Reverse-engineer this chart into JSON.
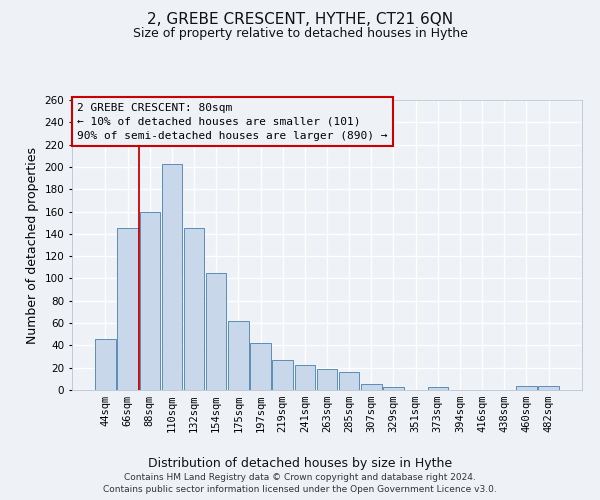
{
  "title": "2, GREBE CRESCENT, HYTHE, CT21 6QN",
  "subtitle": "Size of property relative to detached houses in Hythe",
  "xlabel": "Distribution of detached houses by size in Hythe",
  "ylabel": "Number of detached properties",
  "bar_labels": [
    "44sqm",
    "66sqm",
    "88sqm",
    "110sqm",
    "132sqm",
    "154sqm",
    "175sqm",
    "197sqm",
    "219sqm",
    "241sqm",
    "263sqm",
    "285sqm",
    "307sqm",
    "329sqm",
    "351sqm",
    "373sqm",
    "394sqm",
    "416sqm",
    "438sqm",
    "460sqm",
    "482sqm"
  ],
  "bar_heights": [
    46,
    145,
    160,
    203,
    145,
    105,
    62,
    42,
    27,
    22,
    19,
    16,
    5,
    3,
    0,
    3,
    0,
    0,
    0,
    4,
    4
  ],
  "bar_color": "#c8d8ea",
  "bar_edge_color": "#5b8db8",
  "ylim": [
    0,
    260
  ],
  "yticks": [
    0,
    20,
    40,
    60,
    80,
    100,
    120,
    140,
    160,
    180,
    200,
    220,
    240,
    260
  ],
  "vline_color": "#cc0000",
  "vline_pos": 1.5,
  "annotation_title": "2 GREBE CRESCENT: 80sqm",
  "annotation_line1": "← 10% of detached houses are smaller (101)",
  "annotation_line2": "90% of semi-detached houses are larger (890) →",
  "annotation_box_color": "#cc0000",
  "footer_line1": "Contains HM Land Registry data © Crown copyright and database right 2024.",
  "footer_line2": "Contains public sector information licensed under the Open Government Licence v3.0.",
  "bg_color": "#eef2f7",
  "grid_color": "#ffffff",
  "title_fontsize": 11,
  "subtitle_fontsize": 9,
  "axis_label_fontsize": 9,
  "tick_fontsize": 7.5,
  "footer_fontsize": 6.5,
  "annotation_fontsize": 8
}
